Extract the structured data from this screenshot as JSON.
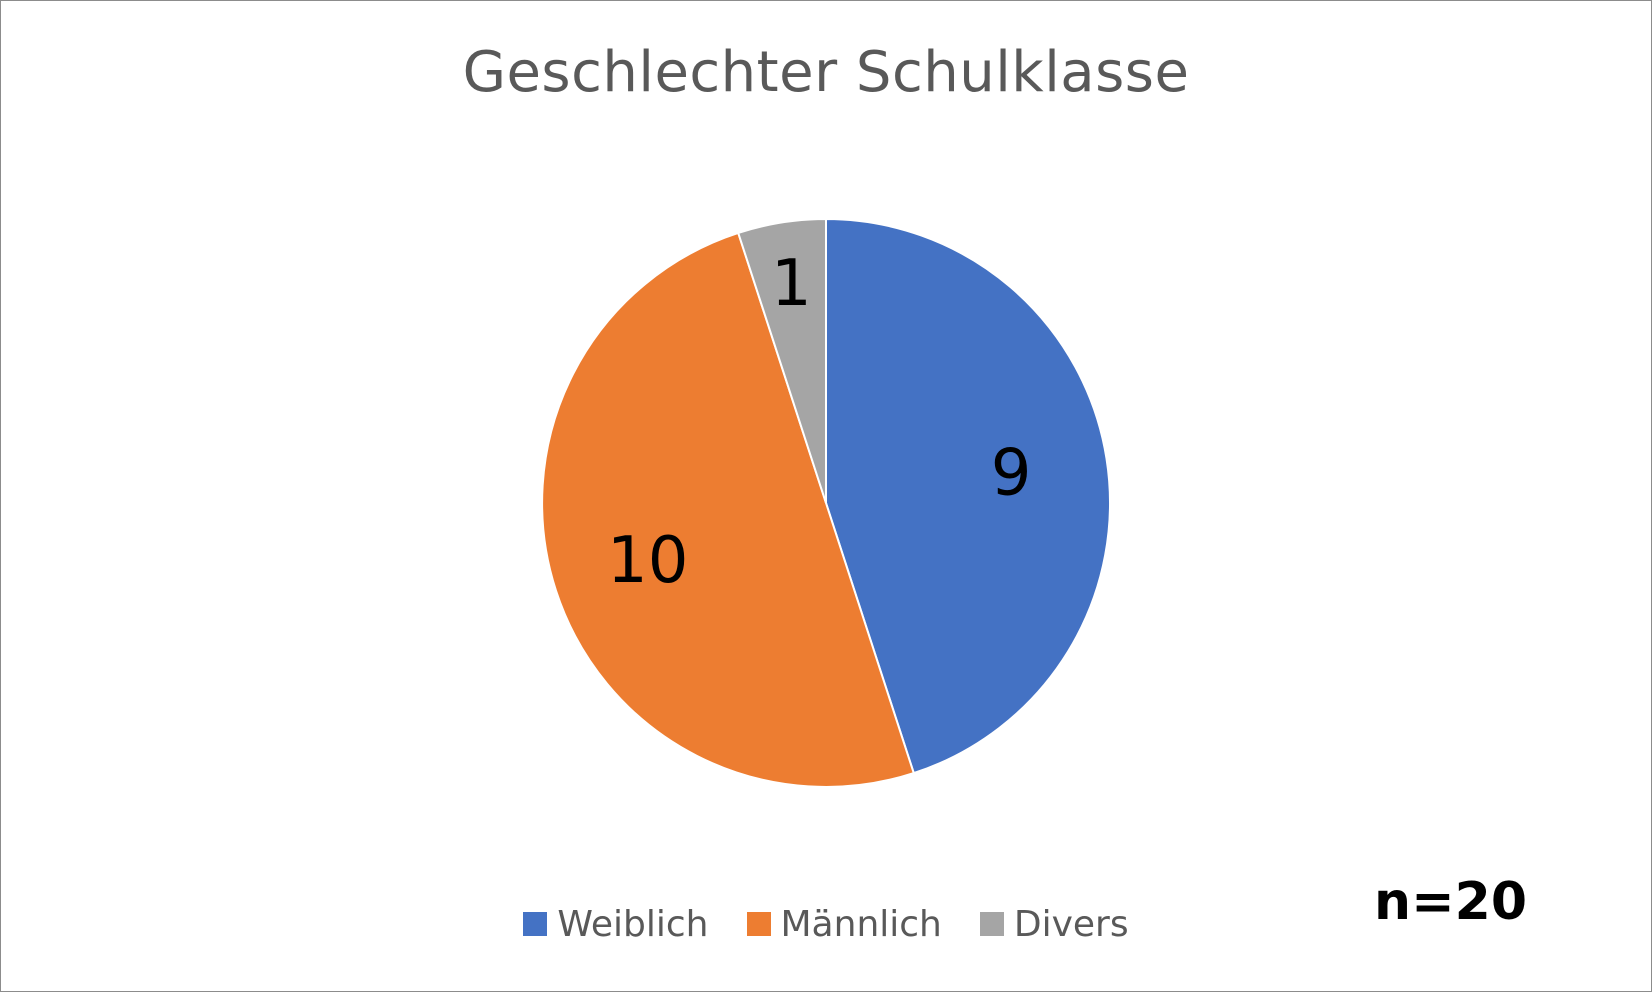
{
  "chart_data": {
    "type": "pie",
    "title": "Geschlechter Schulklasse",
    "categories": [
      "Weiblich",
      "Männlich",
      "Divers"
    ],
    "values": [
      9,
      10,
      1
    ],
    "colors": [
      "#4472C4",
      "#ED7D31",
      "#A5A5A5"
    ],
    "data_labels": [
      "9",
      "10",
      "1"
    ],
    "start_angle": "12 o'clock, clockwise",
    "legend": "bottom",
    "annotation": "n=20"
  }
}
